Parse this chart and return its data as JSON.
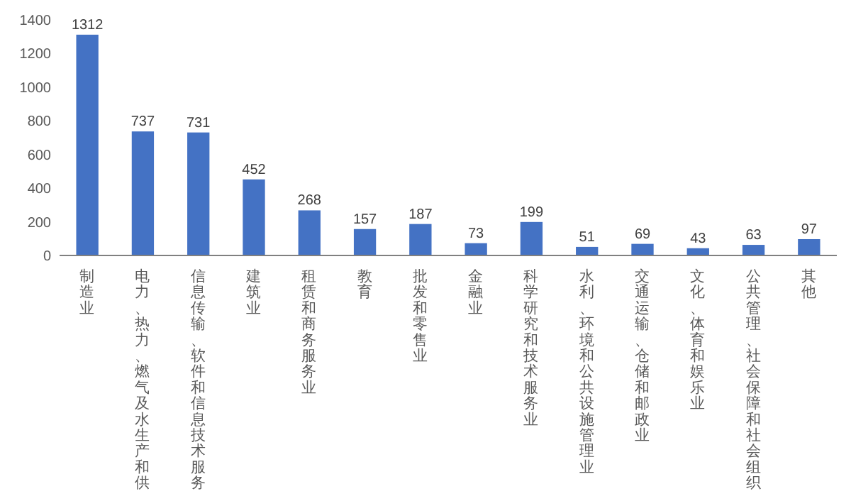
{
  "chart_data": {
    "type": "bar",
    "categories": [
      "制造业",
      "电力、热力、燃气及水生产和供",
      "信息传输、软件和信息技术服务",
      "建筑业",
      "租赁和商务服务业",
      "教育",
      "批发和零售业",
      "金融业",
      "科学研究和技术服务业",
      "水利、环境和公共设施管理业",
      "交通运输、仓储和邮政业",
      "文化、体育和娱乐业",
      "公共管理、社会保障和社会组织",
      "其他"
    ],
    "values": [
      1312,
      737,
      731,
      452,
      268,
      157,
      187,
      73,
      199,
      51,
      69,
      43,
      63,
      97
    ],
    "color": "#4472c4",
    "ylim": [
      0,
      1400
    ],
    "yticks": [
      0,
      200,
      400,
      600,
      800,
      1000,
      1200,
      1400
    ],
    "data_labels": true,
    "grid": false
  }
}
